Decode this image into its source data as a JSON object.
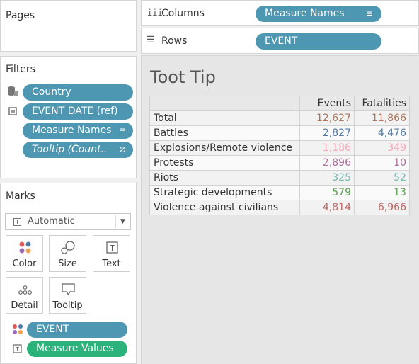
{
  "pages": {
    "title": "Pages"
  },
  "shelves": {
    "columns": {
      "label": "Columns",
      "icon": "iii",
      "pill": "Measure Names",
      "pill_icon": "≡"
    },
    "rows": {
      "label": "Rows",
      "icon": "☰",
      "pill": "EVENT"
    }
  },
  "filters": {
    "title": "Filters",
    "items": [
      {
        "label": "Country",
        "icon": "database-icon"
      },
      {
        "label": "EVENT DATE (ref)",
        "icon": "calendar-icon"
      },
      {
        "label": "Measure Names",
        "icon": "sort-icon",
        "pill_icon": "≡"
      },
      {
        "label": "Tooltip (Count..",
        "icon": "link-icon",
        "pill_icon": "⊘"
      }
    ]
  },
  "marks": {
    "title": "Marks",
    "mark_type": "Automatic",
    "buttons": [
      {
        "label": "Color",
        "icon": "color-icon"
      },
      {
        "label": "Size",
        "icon": "size-icon"
      },
      {
        "label": "Text",
        "icon": "text-icon"
      },
      {
        "label": "Detail",
        "icon": "detail-icon"
      },
      {
        "label": "Tooltip",
        "icon": "tooltip-icon"
      }
    ],
    "cards": [
      {
        "label": "EVENT",
        "icon": "color-icon"
      },
      {
        "label": "Measure Values",
        "icon": "text-icon"
      }
    ]
  },
  "sheet": {
    "title": "Toot Tip"
  },
  "table": {
    "headers": [
      "Events",
      "Fatalities"
    ],
    "rows": [
      {
        "label": "Total",
        "events": "12,627",
        "fatalities": "11,866",
        "color": "#a9765c"
      },
      {
        "label": "Battles",
        "events": "2,827",
        "fatalities": "4,476",
        "color": "#4e79a7"
      },
      {
        "label": "Explosions/Remote violence",
        "events": "1,186",
        "fatalities": "349",
        "color": "#f4a6b5"
      },
      {
        "label": "Protests",
        "events": "2,896",
        "fatalities": "10",
        "color": "#b06e9a"
      },
      {
        "label": "Riots",
        "events": "325",
        "fatalities": "52",
        "color": "#76b7b2"
      },
      {
        "label": "Strategic developments",
        "events": "579",
        "fatalities": "13",
        "color": "#59a14f"
      },
      {
        "label": "Violence against civilians",
        "events": "4,814",
        "fatalities": "6,966",
        "color": "#c06565"
      }
    ]
  }
}
